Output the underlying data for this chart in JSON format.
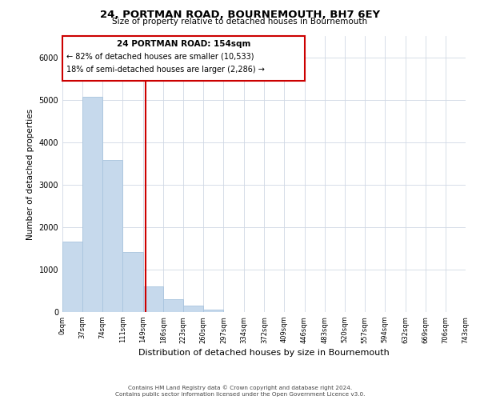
{
  "title": "24, PORTMAN ROAD, BOURNEMOUTH, BH7 6EY",
  "subtitle": "Size of property relative to detached houses in Bournemouth",
  "xlabel": "Distribution of detached houses by size in Bournemouth",
  "ylabel": "Number of detached properties",
  "bar_edges": [
    0,
    37,
    74,
    111,
    149,
    186,
    223,
    260,
    297,
    334,
    372,
    409,
    446,
    483,
    520,
    557,
    594,
    632,
    669,
    706,
    743
  ],
  "bar_heights": [
    1650,
    5060,
    3580,
    1410,
    610,
    300,
    145,
    65,
    0,
    0,
    0,
    0,
    0,
    0,
    0,
    0,
    0,
    0,
    0,
    0
  ],
  "bar_color": "#c6d9ec",
  "bar_edgecolor": "#a8c4de",
  "property_size": 154,
  "vline_color": "#cc0000",
  "vline_x": 154,
  "ylim": [
    0,
    6500
  ],
  "annotation_title": "24 PORTMAN ROAD: 154sqm",
  "annotation_line1": "← 82% of detached houses are smaller (10,533)",
  "annotation_line2": "18% of semi-detached houses are larger (2,286) →",
  "annotation_box_color": "#cc0000",
  "footer_line1": "Contains HM Land Registry data © Crown copyright and database right 2024.",
  "footer_line2": "Contains public sector information licensed under the Open Government Licence v3.0.",
  "background_color": "#ffffff",
  "grid_color": "#d0d8e4"
}
